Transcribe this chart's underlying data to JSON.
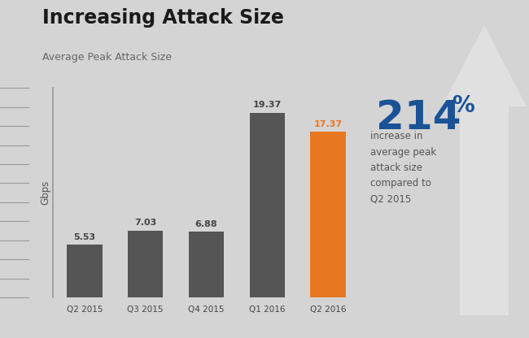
{
  "title": "Increasing Attack Size",
  "subtitle": "Average Peak Attack Size",
  "categories": [
    "Q2 2015",
    "Q3 2015",
    "Q4 2015",
    "Q1 2016",
    "Q2 2016"
  ],
  "values": [
    5.53,
    7.03,
    6.88,
    19.37,
    17.37
  ],
  "bar_colors": [
    "#555555",
    "#555555",
    "#555555",
    "#555555",
    "#E87722"
  ],
  "value_label_colors": [
    "#444444",
    "#444444",
    "#444444",
    "#444444",
    "#E87722"
  ],
  "ylabel": "Gbps",
  "background_color": "#d4d4d4",
  "title_color": "#1a1a1a",
  "subtitle_color": "#666666",
  "big_number": "214",
  "big_number_color": "#1a5296",
  "percent_sign": "%",
  "annotation_text": "increase in\naverage peak\nattack size\ncompared to\nQ2 2015",
  "annotation_color": "#555555",
  "arrow_color": "#e0e0e0",
  "ylim": [
    0,
    22
  ]
}
